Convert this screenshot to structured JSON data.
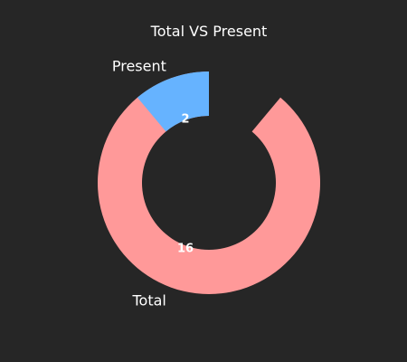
{
  "chart_data": {
    "type": "pie",
    "title": "Total VS Present",
    "donut": true,
    "start_angle_deg": 90,
    "direction": "counterclockwise",
    "slices": [
      {
        "label": "Total",
        "value": 16,
        "color": "#ff9999"
      },
      {
        "label": "Present",
        "value": 2,
        "color": "#66b3ff"
      }
    ]
  },
  "background_color": "#262626",
  "text_color": "#ffffff"
}
